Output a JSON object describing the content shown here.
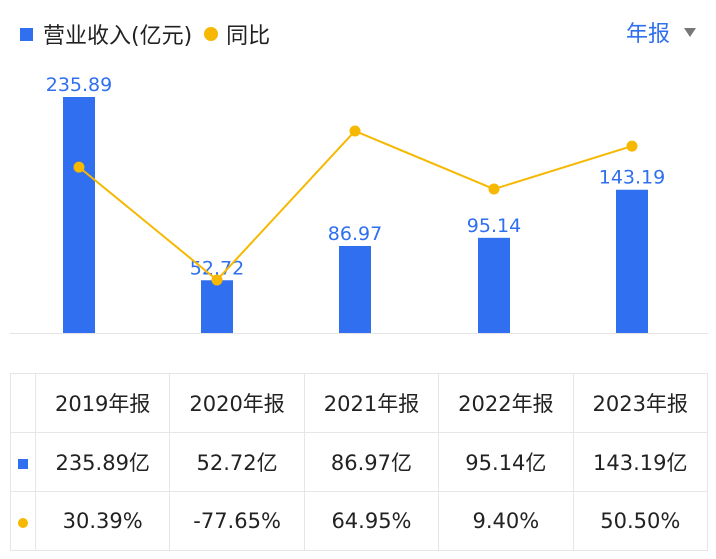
{
  "legend": {
    "bar_label": "营业收入(亿元)",
    "line_label": "同比"
  },
  "period_selector": {
    "label": "年报"
  },
  "colors": {
    "bar": "#2f6ff0",
    "line": "#f6b800",
    "positive": "#e8394a",
    "negative": "#17a55a",
    "bar_label": "#2f6ff0"
  },
  "chart_data": {
    "type": "bar",
    "categories": [
      "2019年报",
      "2020年报",
      "2021年报",
      "2022年报",
      "2023年报"
    ],
    "series": [
      {
        "name": "营业收入(亿元)",
        "type": "bar",
        "values": [
          235.89,
          52.72,
          86.97,
          95.14,
          143.19
        ]
      },
      {
        "name": "同比",
        "type": "line",
        "values": [
          30.39,
          -77.65,
          64.95,
          9.4,
          50.5
        ]
      }
    ],
    "bar_labels": [
      "235.89",
      "52.72",
      "86.97",
      "95.14",
      "143.19"
    ],
    "ylim_bar": [
      0,
      235.89
    ],
    "ylim_line": [
      -77.65,
      64.95
    ]
  },
  "table": {
    "headers": [
      "2019年报",
      "2020年报",
      "2021年报",
      "2022年报",
      "2023年报"
    ],
    "revenue": [
      "235.89亿",
      "52.72亿",
      "86.97亿",
      "95.14亿",
      "143.19亿"
    ],
    "yoy": [
      "30.39%",
      "-77.65%",
      "64.95%",
      "9.40%",
      "50.50%"
    ]
  }
}
